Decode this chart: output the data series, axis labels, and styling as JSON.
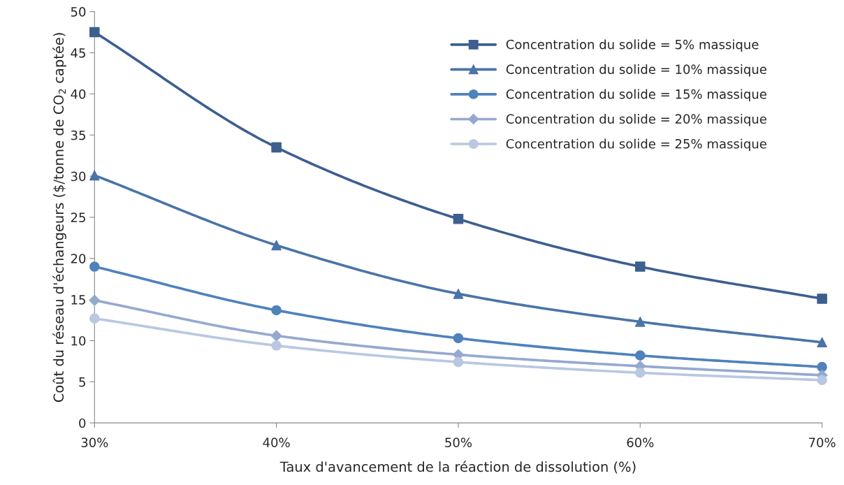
{
  "chart_data": {
    "type": "line",
    "xlabel": "Taux d'avancement de la réaction de dissolution (%)",
    "ylabel": "Coût du réseau d'échangeurs ($/tonne de CO$_{2}$ captée)",
    "x": [
      30,
      40,
      50,
      60,
      70
    ],
    "xlim": [
      30,
      70
    ],
    "xticks": [
      {
        "value": 30,
        "label": "30%"
      },
      {
        "value": 40,
        "label": "40%"
      },
      {
        "value": 50,
        "label": "50%"
      },
      {
        "value": 60,
        "label": "60%"
      },
      {
        "value": 70,
        "label": "70%"
      }
    ],
    "ylim": [
      0,
      50
    ],
    "yticks": [
      0,
      5,
      10,
      15,
      20,
      25,
      30,
      35,
      40,
      45,
      50
    ],
    "grid": false,
    "legend": "top right",
    "line_style": "solid",
    "series": [
      {
        "name": "Concentration du solide = 5% massique",
        "color": "#3c5f8f",
        "marker": "square",
        "values": [
          47.5,
          33.5,
          24.8,
          19.0,
          15.1
        ]
      },
      {
        "name": "Concentration du solide = 10% massique",
        "color": "#4a74a8",
        "marker": "triangle",
        "values": [
          30.1,
          21.6,
          15.7,
          12.3,
          9.8
        ]
      },
      {
        "name": "Concentration du solide = 15% massique",
        "color": "#4f81bd",
        "marker": "circle",
        "values": [
          19.0,
          13.7,
          10.3,
          8.2,
          6.8
        ]
      },
      {
        "name": "Concentration du solide = 20% massique",
        "color": "#95a9cf",
        "marker": "diamond",
        "values": [
          14.9,
          10.6,
          8.3,
          6.9,
          5.8
        ]
      },
      {
        "name": "Concentration du solide = 25% massique",
        "color": "#b9c7e1",
        "marker": "circle",
        "values": [
          12.7,
          9.4,
          7.4,
          6.1,
          5.2
        ]
      }
    ]
  }
}
